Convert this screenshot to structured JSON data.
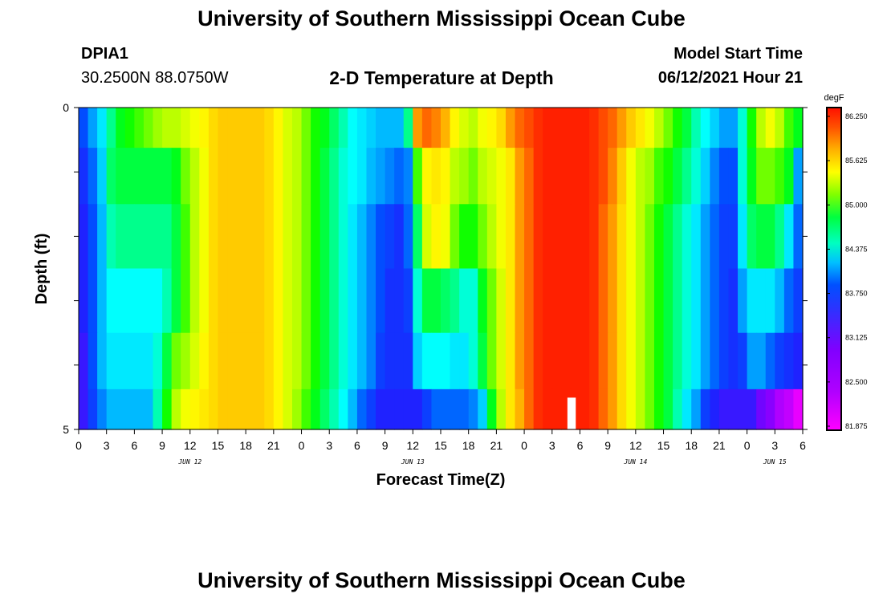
{
  "header": {
    "title_top": "University of Southern Mississippi Ocean Cube",
    "title_bottom": "University of Southern Mississippi Ocean Cube",
    "station_id": "DPIA1",
    "station_coords": "30.2500N  88.0750W",
    "plot_title": "2-D Temperature at Depth",
    "model_start_label": "Model Start Time",
    "model_start_value": "06/12/2021 Hour 21"
  },
  "colors": {
    "palette": [
      "#ff00ff",
      "#c000ff",
      "#8000ff",
      "#2020ff",
      "#0050ff",
      "#00b0ff",
      "#00ffff",
      "#00ff80",
      "#00ff00",
      "#a0ff00",
      "#ffff00",
      "#ffd000",
      "#ff8000",
      "#ff2000"
    ]
  },
  "chart_data": {
    "type": "heatmap",
    "title": "2-D Temperature at Depth",
    "xlabel": "Forecast Time(Z)",
    "ylabel": "Depth (ft)",
    "x_tick_labels": [
      "0",
      "3",
      "6",
      "9",
      "12",
      "15",
      "18",
      "21",
      "0",
      "3",
      "6",
      "9",
      "12",
      "15",
      "18",
      "21",
      "0",
      "3",
      "6",
      "9",
      "12",
      "15",
      "18",
      "21",
      "0",
      "3",
      "6"
    ],
    "day_labels": [
      {
        "label": "JUN 12",
        "hour": 12
      },
      {
        "label": "JUN 13",
        "hour": 36
      },
      {
        "label": "JUN 14",
        "hour": 60
      },
      {
        "label": "JUN 15",
        "hour": 75
      }
    ],
    "x_range_hours": [
      0,
      78
    ],
    "y_range_ft": [
      0,
      5
    ],
    "y_tick_labels": [
      "0",
      "5"
    ],
    "units": "degF",
    "colorbar": {
      "label": "degF",
      "min": 81.875,
      "max": 86.25,
      "tick_labels": [
        "86.250",
        "85.625",
        "85.000",
        "84.375",
        "83.750",
        "83.125",
        "82.500",
        "81.875"
      ]
    },
    "depth_layers_ft": [
      0.25,
      1.0,
      2.0,
      3.0,
      4.0,
      4.75
    ],
    "time_step_hours": 1,
    "temperature_degF_by_layer": [
      [
        83.2,
        83.5,
        83.8,
        84.2,
        84.5,
        84.6,
        84.7,
        84.8,
        84.9,
        85.0,
        85.0,
        85.1,
        85.2,
        85.3,
        85.5,
        85.6,
        85.6,
        85.6,
        85.6,
        85.6,
        85.5,
        85.3,
        85.1,
        85.0,
        84.8,
        84.6,
        84.5,
        84.3,
        84.1,
        83.9,
        83.8,
        83.7,
        83.6,
        83.6,
        83.6,
        84.2,
        85.8,
        86.0,
        85.9,
        85.7,
        85.3,
        85.1,
        85.0,
        85.2,
        85.3,
        85.5,
        85.8,
        86.0,
        86.1,
        86.2,
        86.3,
        86.3,
        86.3,
        86.3,
        86.3,
        86.2,
        86.1,
        86.0,
        85.8,
        85.6,
        85.4,
        85.2,
        85.0,
        84.8,
        84.6,
        84.4,
        84.1,
        83.9,
        83.7,
        83.5,
        83.5,
        84.0,
        84.6,
        85.0,
        85.2,
        85.0,
        84.7,
        84.5
      ],
      [
        83.0,
        83.3,
        83.7,
        84.3,
        84.4,
        84.4,
        84.4,
        84.4,
        84.4,
        84.4,
        84.5,
        84.8,
        85.0,
        85.2,
        85.5,
        85.6,
        85.6,
        85.6,
        85.6,
        85.6,
        85.5,
        85.3,
        85.1,
        85.0,
        84.8,
        84.6,
        84.4,
        84.2,
        84.0,
        83.9,
        83.8,
        83.6,
        83.5,
        83.4,
        83.3,
        83.4,
        84.7,
        85.3,
        85.4,
        85.3,
        85.0,
        84.9,
        84.8,
        85.0,
        85.1,
        85.2,
        85.4,
        85.8,
        86.0,
        86.2,
        86.3,
        86.3,
        86.3,
        86.3,
        86.3,
        86.2,
        86.1,
        85.9,
        85.6,
        85.2,
        85.0,
        84.9,
        84.7,
        84.6,
        84.4,
        84.2,
        84.0,
        83.7,
        83.4,
        83.2,
        83.2,
        84.0,
        84.5,
        84.8,
        84.8,
        84.7,
        84.5,
        83.5
      ],
      [
        82.9,
        83.2,
        83.6,
        84.1,
        84.2,
        84.2,
        84.2,
        84.2,
        84.2,
        84.2,
        84.4,
        84.7,
        85.0,
        85.2,
        85.5,
        85.6,
        85.6,
        85.6,
        85.6,
        85.6,
        85.5,
        85.3,
        85.1,
        85.0,
        84.8,
        84.6,
        84.4,
        84.2,
        84.0,
        83.8,
        83.6,
        83.4,
        83.2,
        83.1,
        83.0,
        83.3,
        84.3,
        85.1,
        85.3,
        85.2,
        84.8,
        84.6,
        84.6,
        84.8,
        85.0,
        85.2,
        85.4,
        85.8,
        86.0,
        86.2,
        86.3,
        86.3,
        86.3,
        86.3,
        86.3,
        86.2,
        86.0,
        85.8,
        85.5,
        85.2,
        85.0,
        84.8,
        84.6,
        84.4,
        84.2,
        84.0,
        83.8,
        83.5,
        83.3,
        83.1,
        83.1,
        83.8,
        84.3,
        84.4,
        84.4,
        84.2,
        83.8,
        83.3
      ],
      [
        82.9,
        83.2,
        83.6,
        83.9,
        83.9,
        83.9,
        83.9,
        83.9,
        83.9,
        84.1,
        84.4,
        84.7,
        85.0,
        85.2,
        85.5,
        85.6,
        85.6,
        85.6,
        85.6,
        85.6,
        85.5,
        85.3,
        85.1,
        85.0,
        84.8,
        84.6,
        84.4,
        84.2,
        84.0,
        83.8,
        83.6,
        83.4,
        83.2,
        83.0,
        83.0,
        83.1,
        84.0,
        84.4,
        84.4,
        84.3,
        84.2,
        84.0,
        84.0,
        84.5,
        84.8,
        85.1,
        85.4,
        85.8,
        86.0,
        86.2,
        86.3,
        86.3,
        86.3,
        86.3,
        86.3,
        86.2,
        86.0,
        85.8,
        85.5,
        85.2,
        85.0,
        84.8,
        84.6,
        84.4,
        84.2,
        84.0,
        83.8,
        83.5,
        83.3,
        83.1,
        83.0,
        83.5,
        83.8,
        83.8,
        83.8,
        83.6,
        83.3,
        83.1
      ],
      [
        82.8,
        83.2,
        83.6,
        83.8,
        83.8,
        83.8,
        83.8,
        83.8,
        84.0,
        84.4,
        84.8,
        84.9,
        85.1,
        85.3,
        85.5,
        85.6,
        85.6,
        85.6,
        85.6,
        85.6,
        85.5,
        85.3,
        85.1,
        85.0,
        84.8,
        84.6,
        84.4,
        84.2,
        84.0,
        83.8,
        83.6,
        83.4,
        83.1,
        83.0,
        83.0,
        83.0,
        83.7,
        83.9,
        83.9,
        83.9,
        83.8,
        83.8,
        84.0,
        84.4,
        84.8,
        85.1,
        85.4,
        85.8,
        86.0,
        86.2,
        86.3,
        86.3,
        86.3,
        86.3,
        86.3,
        86.2,
        86.0,
        85.8,
        85.5,
        85.2,
        85.0,
        84.8,
        84.6,
        84.4,
        84.2,
        84.0,
        83.8,
        83.5,
        83.3,
        83.1,
        83.0,
        83.1,
        83.5,
        83.5,
        83.3,
        83.1,
        83.0,
        82.9
      ],
      [
        82.8,
        83.1,
        83.4,
        83.6,
        83.6,
        83.6,
        83.6,
        83.6,
        84.1,
        84.6,
        85.0,
        85.2,
        85.3,
        85.4,
        85.5,
        85.6,
        85.6,
        85.6,
        85.6,
        85.6,
        85.5,
        85.3,
        85.1,
        84.9,
        84.7,
        84.5,
        84.3,
        84.1,
        83.9,
        83.6,
        83.3,
        83.1,
        82.9,
        82.9,
        82.9,
        82.9,
        82.9,
        83.1,
        83.3,
        83.3,
        83.3,
        83.3,
        83.4,
        83.7,
        84.5,
        85.0,
        85.4,
        85.7,
        86.0,
        86.2,
        86.3,
        86.3,
        86.3,
        86.3,
        86.3,
        86.2,
        86.0,
        85.8,
        85.5,
        85.2,
        85.0,
        84.8,
        84.6,
        84.4,
        84.1,
        83.8,
        83.5,
        83.1,
        82.9,
        82.8,
        82.8,
        82.8,
        82.8,
        82.6,
        82.5,
        82.3,
        82.2,
        82.0
      ]
    ],
    "annotations": [
      {
        "type": "data-gap",
        "hour": 53,
        "depth_range_ft": [
          4.5,
          5.0
        ],
        "color": "#ffffff"
      }
    ]
  }
}
